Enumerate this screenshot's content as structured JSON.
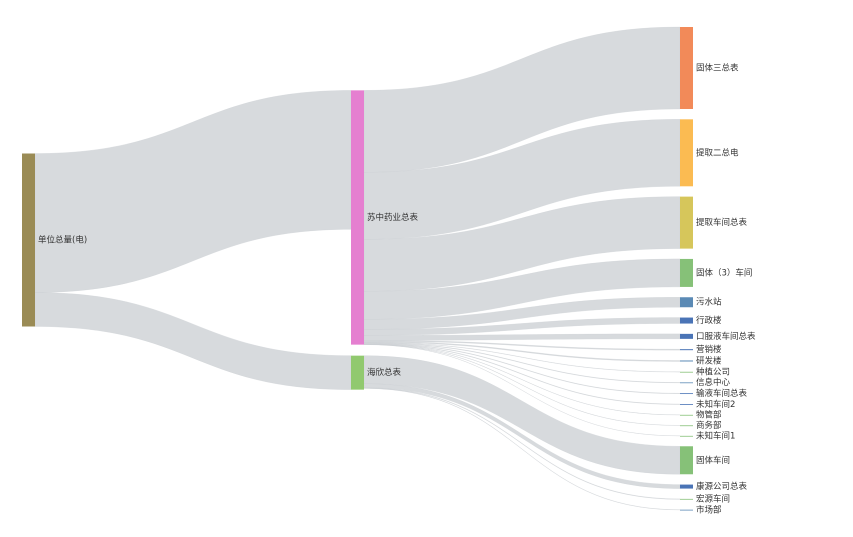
{
  "chart_data": {
    "type": "sankey",
    "nodes": [
      {
        "name": "单位总量(电)",
        "color": "#9a8b55"
      },
      {
        "name": "苏中药业总表",
        "color": "#e57fd0"
      },
      {
        "name": "海欣总表",
        "color": "#91c96f"
      },
      {
        "name": "固体三总表",
        "color": "#f28a59"
      },
      {
        "name": "提取二总电",
        "color": "#fbbb52"
      },
      {
        "name": "提取车间总表",
        "color": "#d6c65b"
      },
      {
        "name": "固体（3）车间",
        "color": "#86c178"
      },
      {
        "name": "污水站",
        "color": "#5b8ab5"
      },
      {
        "name": "行政楼",
        "color": "#4a74b6"
      },
      {
        "name": "口服液车间总表",
        "color": "#4a74b6"
      },
      {
        "name": "营销楼",
        "color": "#4a74b6"
      },
      {
        "name": "研发楼",
        "color": "#5b8ab5"
      },
      {
        "name": "种植公司",
        "color": "#86c178"
      },
      {
        "name": "信息中心",
        "color": "#5b8ab5"
      },
      {
        "name": "输液车间总表",
        "color": "#4a74b6"
      },
      {
        "name": "未知车间2",
        "color": "#4a74b6"
      },
      {
        "name": "物管部",
        "color": "#86c178"
      },
      {
        "name": "商务部",
        "color": "#86c178"
      },
      {
        "name": "未知车间1",
        "color": "#86c178"
      },
      {
        "name": "固体车间",
        "color": "#86c178"
      },
      {
        "name": "康源公司总表",
        "color": "#4a74b6"
      },
      {
        "name": "宏源车间",
        "color": "#86c178"
      },
      {
        "name": "市场部",
        "color": "#5b8ab5"
      }
    ],
    "links": [
      {
        "source": 0,
        "target": 1,
        "value": 139
      },
      {
        "source": 0,
        "target": 2,
        "value": 34
      },
      {
        "source": 1,
        "target": 3,
        "value": 82
      },
      {
        "source": 1,
        "target": 4,
        "value": 67
      },
      {
        "source": 1,
        "target": 5,
        "value": 52
      },
      {
        "source": 1,
        "target": 6,
        "value": 28
      },
      {
        "source": 1,
        "target": 7,
        "value": 10
      },
      {
        "source": 1,
        "target": 8,
        "value": 6
      },
      {
        "source": 1,
        "target": 9,
        "value": 5
      },
      {
        "source": 1,
        "target": 10,
        "value": 1
      },
      {
        "source": 1,
        "target": 11,
        "value": 1
      },
      {
        "source": 1,
        "target": 12,
        "value": 0.3
      },
      {
        "source": 1,
        "target": 13,
        "value": 0.5
      },
      {
        "source": 1,
        "target": 14,
        "value": 0.5
      },
      {
        "source": 1,
        "target": 15,
        "value": 0.5
      },
      {
        "source": 1,
        "target": 16,
        "value": 0.2
      },
      {
        "source": 1,
        "target": 17,
        "value": 0.2
      },
      {
        "source": 1,
        "target": 18,
        "value": 0.1
      },
      {
        "source": 2,
        "target": 19,
        "value": 28
      },
      {
        "source": 2,
        "target": 20,
        "value": 4
      },
      {
        "source": 2,
        "target": 21,
        "value": 0.5
      },
      {
        "source": 2,
        "target": 22,
        "value": 0.3
      }
    ]
  }
}
